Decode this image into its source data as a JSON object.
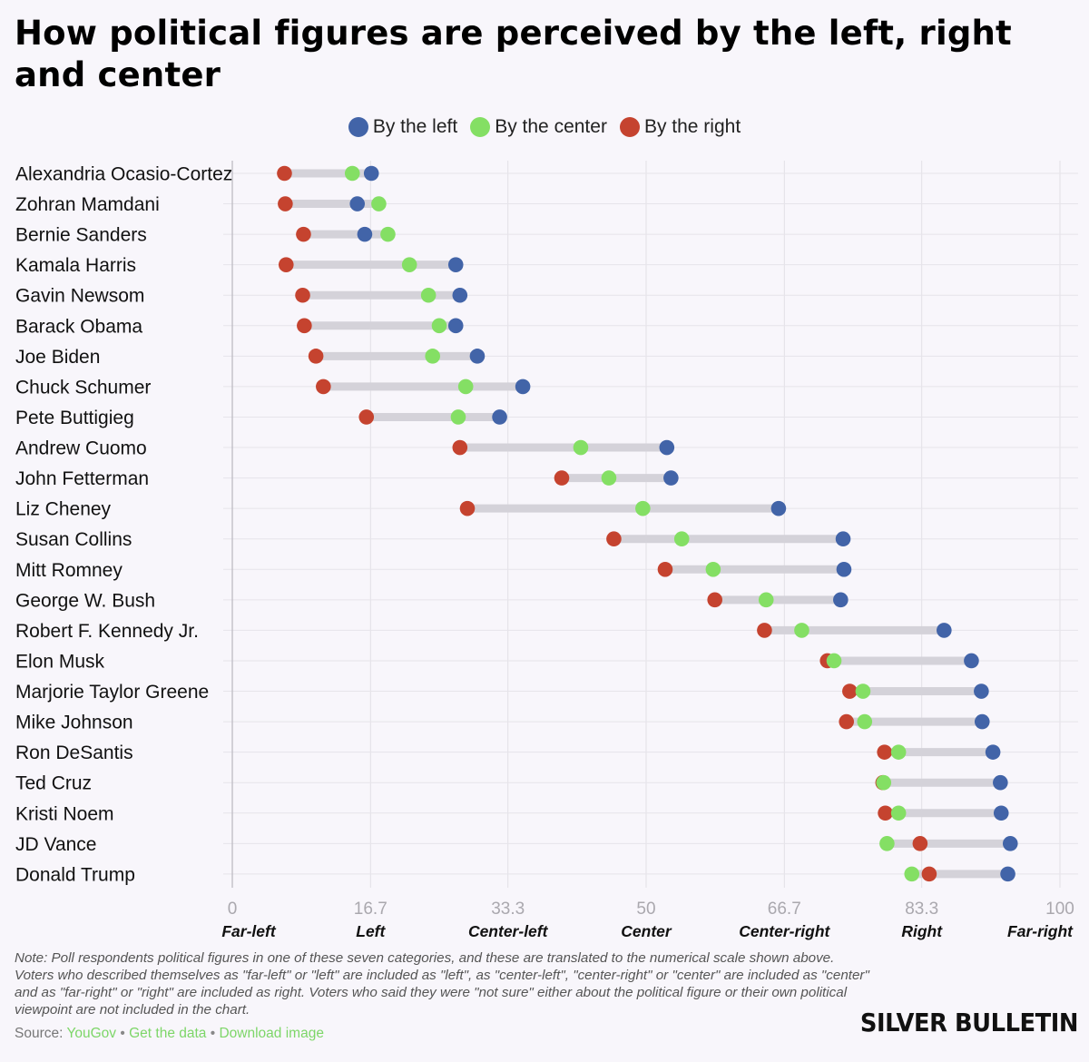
{
  "title": "How political figures are perceived by the left, right and center",
  "legend": [
    {
      "label": "By the left",
      "color": "#4264a8"
    },
    {
      "label": "By the center",
      "color": "#84df64"
    },
    {
      "label": "By the right",
      "color": "#c5432f"
    }
  ],
  "note": "Note: Poll respondents political figures in one of these seven categories, and these are translated to the numerical scale shown above. Voters who described themselves as \"far-left\" or \"left\" are included as \"left\", as \"center-left\", \"center-right\" or \"center\" are included as \"center\" and as \"far-right\" or \"right\" are included as right. Voters who said they were \"not sure\" either about the political figure or their own political viewpoint are not included in the chart.",
  "source": {
    "prefix": "Source:",
    "links": [
      "YouGov",
      "Get the data",
      "Download image"
    ],
    "separator": "•"
  },
  "brand": "SILVER BULLETIN",
  "chart_data": {
    "type": "scatter",
    "xlim": [
      0,
      100
    ],
    "x_ticks": [
      {
        "value": 0,
        "label": "0",
        "category": "Far-left"
      },
      {
        "value": 16.7,
        "label": "16.7",
        "category": "Left"
      },
      {
        "value": 33.3,
        "label": "33.3",
        "category": "Center-left"
      },
      {
        "value": 50,
        "label": "50",
        "category": "Center"
      },
      {
        "value": 66.7,
        "label": "66.7",
        "category": "Center-right"
      },
      {
        "value": 83.3,
        "label": "83.3",
        "category": "Right"
      },
      {
        "value": 100,
        "label": "100",
        "category": "Far-right"
      }
    ],
    "grid": true,
    "series_names": [
      "By the left",
      "By the center",
      "By the right"
    ],
    "categories": [
      "Alexandria Ocasio-Cortez",
      "Zohran Mamdani",
      "Bernie Sanders",
      "Kamala Harris",
      "Gavin Newsom",
      "Barack Obama",
      "Joe Biden",
      "Chuck Schumer",
      "Pete Buttigieg",
      "Andrew Cuomo",
      "John Fetterman",
      "Liz Cheney",
      "Susan Collins",
      "Mitt Romney",
      "George W. Bush",
      "Robert F. Kennedy Jr.",
      "Elon Musk",
      "Marjorie Taylor Greene",
      "Mike Johnson",
      "Ron DeSantis",
      "Ted Cruz",
      "Kristi Noem",
      "JD Vance",
      "Donald Trump"
    ],
    "series": [
      {
        "name": "By the left",
        "color": "#4264a8",
        "values": [
          16.8,
          15.1,
          16.0,
          27.0,
          27.5,
          27.0,
          29.6,
          35.1,
          32.3,
          52.5,
          53.0,
          66.0,
          73.8,
          73.9,
          73.5,
          86.0,
          89.3,
          90.5,
          90.6,
          91.9,
          92.8,
          92.9,
          94.0,
          93.7
        ]
      },
      {
        "name": "By the center",
        "color": "#84df64",
        "values": [
          14.5,
          17.7,
          18.8,
          21.4,
          23.7,
          25.0,
          24.2,
          28.2,
          27.3,
          42.1,
          45.5,
          49.6,
          54.3,
          58.1,
          64.5,
          68.8,
          72.7,
          76.2,
          76.4,
          80.5,
          78.7,
          80.5,
          79.1,
          82.1
        ]
      },
      {
        "name": "By the right",
        "color": "#c5432f",
        "values": [
          6.3,
          6.4,
          8.6,
          6.5,
          8.5,
          8.7,
          10.1,
          11.0,
          16.2,
          27.5,
          39.8,
          28.4,
          46.1,
          52.3,
          58.3,
          64.3,
          71.9,
          74.6,
          74.2,
          78.8,
          78.6,
          78.9,
          83.1,
          84.2
        ]
      }
    ]
  }
}
